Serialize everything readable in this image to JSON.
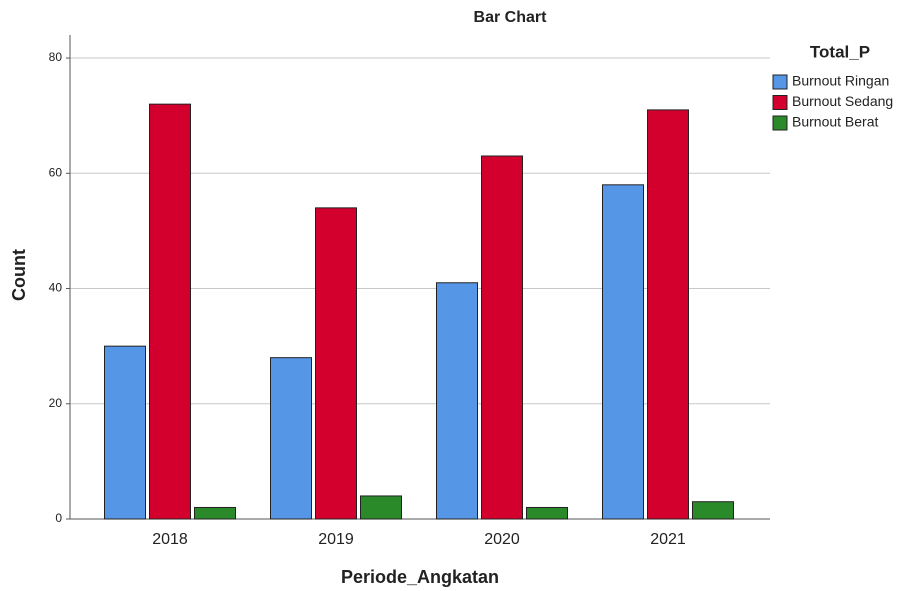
{
  "chart_data": {
    "type": "bar",
    "title": "Bar Chart",
    "x_label": "Periode_Angkatan",
    "y_label": "Count",
    "legend_title": "Total_P",
    "legend_position": "right",
    "categories": [
      "2018",
      "2019",
      "2020",
      "2021"
    ],
    "series": [
      {
        "name": "Burnout Ringan",
        "color": "#5596e6",
        "values": [
          30,
          28,
          41,
          58
        ]
      },
      {
        "name": "Burnout Sedang",
        "color": "#d3002d",
        "values": [
          72,
          54,
          63,
          71
        ]
      },
      {
        "name": "Burnout Berat",
        "color": "#2a8a2a",
        "values": [
          2,
          4,
          2,
          3
        ]
      }
    ],
    "ylim": [
      0,
      84
    ],
    "yticks": [
      0,
      20,
      40,
      60,
      80
    ],
    "grid": true
  }
}
